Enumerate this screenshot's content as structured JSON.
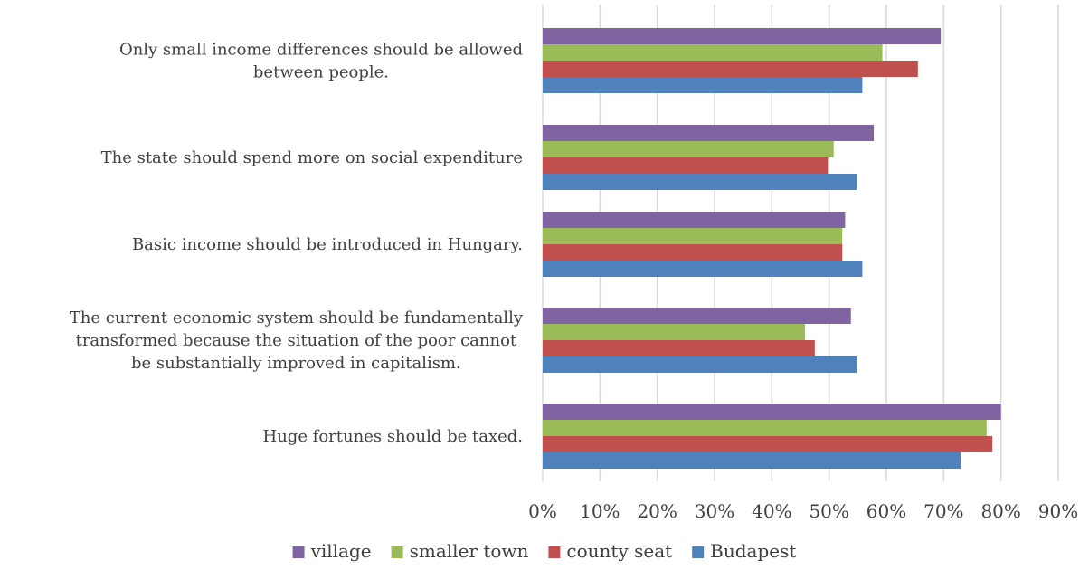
{
  "chart_data": {
    "type": "bar",
    "orientation": "horizontal",
    "title": "",
    "xlabel": "",
    "ylabel": "",
    "categories": [
      "Only small income differences should be allowed between people.",
      "The state should spend more on social expenditure",
      "Basic income should be introduced in Hungary.",
      "The current economic system should be fundamentally transformed because the situation of the poor cannot be substantially improved in capitalism.",
      "Huge fortunes should be taxed."
    ],
    "category_lines": [
      [
        "Only small income differences should be allowed",
        "between people."
      ],
      [
        "The state should spend more on social expenditure"
      ],
      [
        "Basic income should be introduced in Hungary."
      ],
      [
        "The current economic system should be fundamentally",
        "transformed because the situation of the poor cannot",
        "be substantially improved in capitalism."
      ],
      [
        "Huge fortunes should be taxed."
      ]
    ],
    "series": [
      {
        "name": "village",
        "color": "#8064a2",
        "values": [
          69.5,
          57.8,
          52.8,
          53.8,
          80.0
        ]
      },
      {
        "name": "smaller town",
        "color": "#9bbb59",
        "values": [
          59.3,
          50.8,
          52.3,
          45.8,
          77.5
        ]
      },
      {
        "name": "county seat",
        "color": "#c0504d",
        "values": [
          65.5,
          49.8,
          52.3,
          47.5,
          78.5
        ]
      },
      {
        "name": "Budapest",
        "color": "#4f81bd",
        "values": [
          55.8,
          54.8,
          55.8,
          54.8,
          73.0
        ]
      }
    ],
    "xlim": [
      0,
      90
    ],
    "ticks": [
      0,
      10,
      20,
      30,
      40,
      50,
      60,
      70,
      80,
      90
    ],
    "tick_labels": [
      "0%",
      "10%",
      "20%",
      "30%",
      "40%",
      "50%",
      "60%",
      "70%",
      "80%",
      "90%"
    ],
    "grid": true,
    "legend_position": "bottom"
  }
}
